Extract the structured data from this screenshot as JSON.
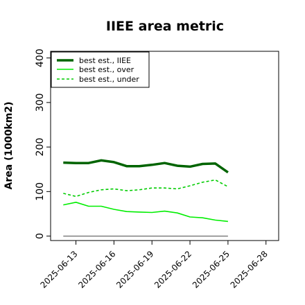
{
  "chart_data": {
    "type": "line",
    "title": "IIEE area metric",
    "xlabel": "",
    "ylabel": "Area (1000km2)",
    "xlim": [
      "2025-06-11",
      "2025-06-29"
    ],
    "ylim": [
      -10,
      415
    ],
    "yticks": [
      0,
      100,
      200,
      300,
      400
    ],
    "xticks": [
      "2025-06-13",
      "2025-06-16",
      "2025-06-19",
      "2025-06-22",
      "2025-06-25",
      "2025-06-28"
    ],
    "x": [
      "2025-06-12",
      "2025-06-13",
      "2025-06-14",
      "2025-06-15",
      "2025-06-16",
      "2025-06-17",
      "2025-06-18",
      "2025-06-19",
      "2025-06-20",
      "2025-06-21",
      "2025-06-22",
      "2025-06-23",
      "2025-06-24",
      "2025-06-25"
    ],
    "series": [
      {
        "name": "best est., IIEE",
        "color": "#006400",
        "style": "solid",
        "width": "thick",
        "values": [
          165,
          164,
          164,
          170,
          166,
          157,
          157,
          160,
          164,
          158,
          156,
          162,
          163,
          143
        ]
      },
      {
        "name": "best est., over",
        "color": "#00ee00",
        "style": "solid",
        "width": "thin",
        "values": [
          70,
          76,
          67,
          67,
          60,
          55,
          54,
          53,
          56,
          52,
          43,
          41,
          36,
          33
        ]
      },
      {
        "name": "best est., under",
        "color": "#00cc00",
        "style": "dashed",
        "width": "thin",
        "values": [
          96,
          89,
          98,
          104,
          106,
          102,
          104,
          108,
          108,
          106,
          113,
          121,
          126,
          111
        ]
      }
    ],
    "baseline": {
      "value": 0,
      "color": "#7f7f7f"
    },
    "legend_position": "top-left",
    "grid": false
  }
}
